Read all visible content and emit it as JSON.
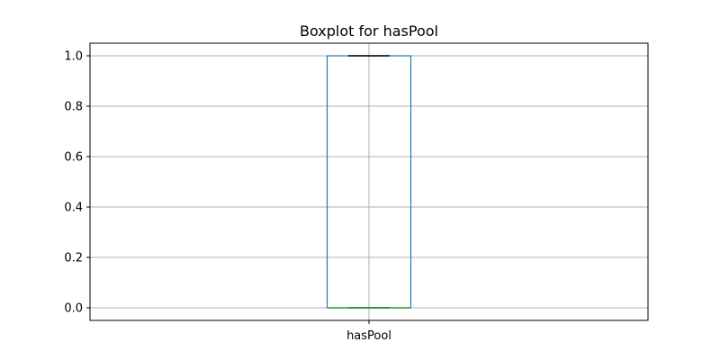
{
  "chart_data": {
    "type": "boxplot",
    "title": "Boxplot for hasPool",
    "xlabel": "",
    "ylabel": "",
    "categories": [
      "hasPool"
    ],
    "boxes": [
      {
        "name": "hasPool",
        "min": 0.0,
        "q1": 0.0,
        "median": 0.0,
        "q3": 1.0,
        "max": 1.0
      }
    ],
    "ylim": [
      -0.05,
      1.05
    ],
    "yticks": [
      0.0,
      0.2,
      0.4,
      0.6,
      0.8,
      1.0
    ],
    "ytick_labels": [
      "0.0",
      "0.2",
      "0.4",
      "0.6",
      "0.8",
      "1.0"
    ],
    "grid": true,
    "colors": {
      "box": "#1f77b4",
      "median": "#2ca02c",
      "whisker": "#000000",
      "grid": "#b0b0b0"
    }
  }
}
